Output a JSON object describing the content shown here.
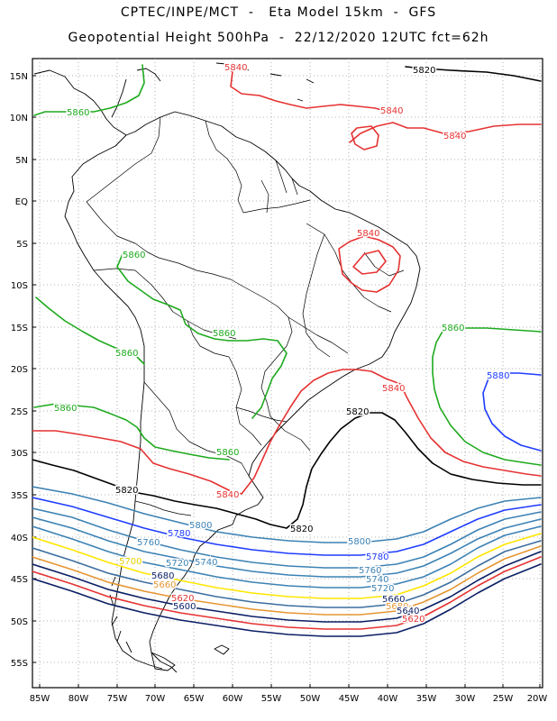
{
  "header": {
    "title_line1": "CPTEC/INPE/MCT  -   Eta Model 15km  -  GFS",
    "title_line2": "Geopotential Height 500hPa  -  22/12/2020 12UTC fct=62h"
  },
  "map": {
    "lat_labels": [
      "15N",
      "10N",
      "5N",
      "EQ",
      "5S",
      "10S",
      "15S",
      "20S",
      "25S",
      "30S",
      "35S",
      "40S",
      "45S",
      "50S",
      "55S"
    ],
    "lon_labels": [
      "85W",
      "80W",
      "75W",
      "70W",
      "65W",
      "60W",
      "55W",
      "50W",
      "45W",
      "40W",
      "35W",
      "30W",
      "25W",
      "20W"
    ],
    "grid": true,
    "colors": {
      "c5580": "#1e3cff",
      "c5600": "#1eaa1e",
      "c5620": "#000000",
      "c5640": "#e63232",
      "c5660": "#e69632",
      "c5680": "#ffe600",
      "c5700": "#3c82b4",
      "c5720": "#0a1e64",
      "coast": "#000000"
    },
    "contour_labels": [
      {
        "id": "l01",
        "text": "5840",
        "color": "#e63232"
      },
      {
        "id": "l02",
        "text": "5820",
        "color": "#000000"
      },
      {
        "id": "l03",
        "text": "5860",
        "color": "#1eaa1e"
      },
      {
        "id": "l04",
        "text": "5840",
        "color": "#e63232"
      },
      {
        "id": "l05",
        "text": "5840",
        "color": "#e63232"
      },
      {
        "id": "l06",
        "text": "5840",
        "color": "#e63232"
      },
      {
        "id": "l07",
        "text": "5860",
        "color": "#1eaa1e"
      },
      {
        "id": "l08",
        "text": "5860",
        "color": "#1eaa1e"
      },
      {
        "id": "l09",
        "text": "5860",
        "color": "#1eaa1e"
      },
      {
        "id": "l10",
        "text": "5860",
        "color": "#1eaa1e"
      },
      {
        "id": "l11",
        "text": "5880",
        "color": "#1e3cff"
      },
      {
        "id": "l12",
        "text": "5840",
        "color": "#e63232"
      },
      {
        "id": "l13",
        "text": "5820",
        "color": "#000000"
      },
      {
        "id": "l14",
        "text": "5860",
        "color": "#1eaa1e"
      },
      {
        "id": "l15",
        "text": "5860",
        "color": "#1eaa1e"
      },
      {
        "id": "l16",
        "text": "5820",
        "color": "#000000"
      },
      {
        "id": "l17",
        "text": "5840",
        "color": "#e63232"
      },
      {
        "id": "l18",
        "text": "5820",
        "color": "#000000"
      },
      {
        "id": "l19",
        "text": "5800",
        "color": "#3c82b4"
      },
      {
        "id": "l20",
        "text": "5780",
        "color": "#1e3cff"
      },
      {
        "id": "l21",
        "text": "5760",
        "color": "#3c82b4"
      },
      {
        "id": "l22",
        "text": "5800",
        "color": "#3c82b4"
      },
      {
        "id": "l23",
        "text": "5780",
        "color": "#1e3cff"
      },
      {
        "id": "l24",
        "text": "5760",
        "color": "#3c82b4"
      },
      {
        "id": "l25",
        "text": "5740",
        "color": "#3c82b4"
      },
      {
        "id": "l26",
        "text": "5720",
        "color": "#3c82b4"
      },
      {
        "id": "l27",
        "text": "5740",
        "color": "#3c82b4"
      },
      {
        "id": "l28",
        "text": "5720",
        "color": "#3c82b4"
      },
      {
        "id": "l29",
        "text": "5700",
        "color": "#e6d200"
      },
      {
        "id": "l30",
        "text": "5680",
        "color": "#0a1e64"
      },
      {
        "id": "l31",
        "text": "5660",
        "color": "#e69632"
      },
      {
        "id": "l32",
        "text": "5620",
        "color": "#e63232"
      },
      {
        "id": "l33",
        "text": "5600",
        "color": "#0a1e64"
      },
      {
        "id": "l34",
        "text": "5660",
        "color": "#0a1e64"
      },
      {
        "id": "l35",
        "text": "5680",
        "color": "#e69632"
      },
      {
        "id": "l36",
        "text": "5640",
        "color": "#0a1e64"
      },
      {
        "id": "l37",
        "text": "5620",
        "color": "#e63232"
      }
    ]
  }
}
